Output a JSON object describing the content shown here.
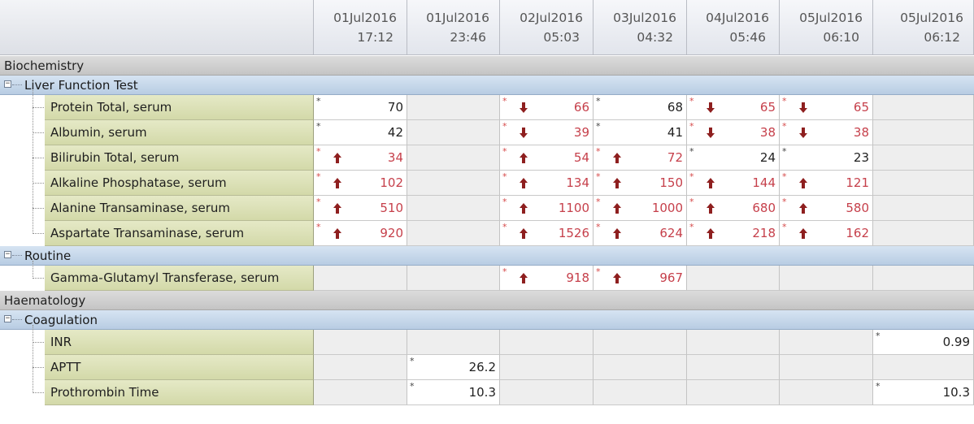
{
  "columns": [
    {
      "date": "01Jul2016",
      "time": "17:12"
    },
    {
      "date": "01Jul2016",
      "time": "23:46"
    },
    {
      "date": "02Jul2016",
      "time": "05:03"
    },
    {
      "date": "03Jul2016",
      "time": "04:32"
    },
    {
      "date": "04Jul2016",
      "time": "05:46"
    },
    {
      "date": "05Jul2016",
      "time": "06:10"
    },
    {
      "date": "05Jul2016",
      "time": "06:12"
    }
  ],
  "colors": {
    "abnormal": "#c6404b",
    "normal": "#222222",
    "arrow": "#8e1f1f",
    "test_label_bg": "#dde2b8",
    "group_band_bg": "#c9d9ec",
    "category_band_bg": "#d0d0d0"
  },
  "categories": [
    {
      "name": "Biochemistry",
      "groups": [
        {
          "name": "Liver Function Test",
          "tests": [
            {
              "name": "Protein Total, serum",
              "results": [
                {
                  "value": "70",
                  "flag": "",
                  "abnormal": false
                },
                null,
                {
                  "value": "66",
                  "flag": "down",
                  "abnormal": true
                },
                {
                  "value": "68",
                  "flag": "",
                  "abnormal": false
                },
                {
                  "value": "65",
                  "flag": "down",
                  "abnormal": true
                },
                {
                  "value": "65",
                  "flag": "down",
                  "abnormal": true
                },
                null
              ]
            },
            {
              "name": "Albumin, serum",
              "results": [
                {
                  "value": "42",
                  "flag": "",
                  "abnormal": false
                },
                null,
                {
                  "value": "39",
                  "flag": "down",
                  "abnormal": true
                },
                {
                  "value": "41",
                  "flag": "",
                  "abnormal": false
                },
                {
                  "value": "38",
                  "flag": "down",
                  "abnormal": true
                },
                {
                  "value": "38",
                  "flag": "down",
                  "abnormal": true
                },
                null
              ]
            },
            {
              "name": "Bilirubin Total, serum",
              "results": [
                {
                  "value": "34",
                  "flag": "up",
                  "abnormal": true
                },
                null,
                {
                  "value": "54",
                  "flag": "up",
                  "abnormal": true
                },
                {
                  "value": "72",
                  "flag": "up",
                  "abnormal": true
                },
                {
                  "value": "24",
                  "flag": "",
                  "abnormal": false
                },
                {
                  "value": "23",
                  "flag": "",
                  "abnormal": false
                },
                null
              ]
            },
            {
              "name": "Alkaline Phosphatase, serum",
              "results": [
                {
                  "value": "102",
                  "flag": "up",
                  "abnormal": true
                },
                null,
                {
                  "value": "134",
                  "flag": "up",
                  "abnormal": true
                },
                {
                  "value": "150",
                  "flag": "up",
                  "abnormal": true
                },
                {
                  "value": "144",
                  "flag": "up",
                  "abnormal": true
                },
                {
                  "value": "121",
                  "flag": "up",
                  "abnormal": true
                },
                null
              ]
            },
            {
              "name": "Alanine Transaminase, serum",
              "results": [
                {
                  "value": "510",
                  "flag": "up",
                  "abnormal": true
                },
                null,
                {
                  "value": "1100",
                  "flag": "up",
                  "abnormal": true
                },
                {
                  "value": "1000",
                  "flag": "up",
                  "abnormal": true
                },
                {
                  "value": "680",
                  "flag": "up",
                  "abnormal": true
                },
                {
                  "value": "580",
                  "flag": "up",
                  "abnormal": true
                },
                null
              ]
            },
            {
              "name": "Aspartate Transaminase, serum",
              "results": [
                {
                  "value": "920",
                  "flag": "up",
                  "abnormal": true
                },
                null,
                {
                  "value": "1526",
                  "flag": "up",
                  "abnormal": true
                },
                {
                  "value": "624",
                  "flag": "up",
                  "abnormal": true
                },
                {
                  "value": "218",
                  "flag": "up",
                  "abnormal": true
                },
                {
                  "value": "162",
                  "flag": "up",
                  "abnormal": true
                },
                null
              ]
            }
          ]
        },
        {
          "name": "Routine",
          "tests": [
            {
              "name": "Gamma-Glutamyl Transferase, serum",
              "results": [
                null,
                null,
                {
                  "value": "918",
                  "flag": "up",
                  "abnormal": true
                },
                {
                  "value": "967",
                  "flag": "up",
                  "abnormal": true
                },
                null,
                null,
                null
              ]
            }
          ]
        }
      ]
    },
    {
      "name": "Haematology",
      "groups": [
        {
          "name": "Coagulation",
          "tests": [
            {
              "name": "INR",
              "results": [
                null,
                null,
                null,
                null,
                null,
                null,
                {
                  "value": "0.99",
                  "flag": "",
                  "abnormal": false
                }
              ]
            },
            {
              "name": "APTT",
              "results": [
                null,
                {
                  "value": "26.2",
                  "flag": "",
                  "abnormal": false
                },
                null,
                null,
                null,
                null,
                null
              ]
            },
            {
              "name": "Prothrombin Time",
              "results": [
                null,
                {
                  "value": "10.3",
                  "flag": "",
                  "abnormal": false
                },
                null,
                null,
                null,
                null,
                {
                  "value": "10.3",
                  "flag": "",
                  "abnormal": false
                }
              ]
            }
          ]
        }
      ]
    }
  ]
}
